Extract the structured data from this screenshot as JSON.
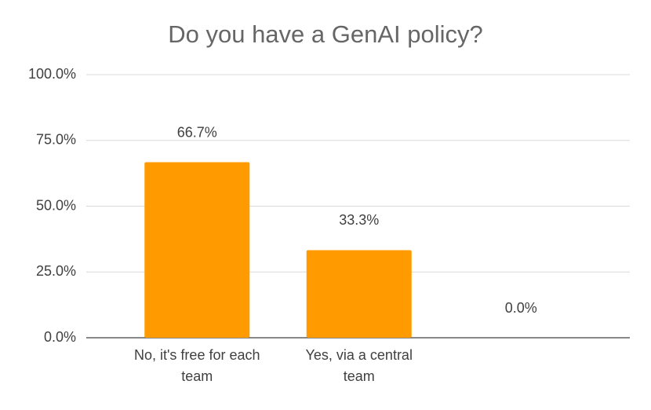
{
  "chart_data": {
    "type": "bar",
    "title": "Do you have a GenAI policy?",
    "categories": [
      "No, it's free for each team",
      "Yes, via a central team",
      null
    ],
    "values": [
      66.7,
      33.3,
      0.0
    ],
    "value_labels": [
      "66.7%",
      "33.3%",
      "0.0%"
    ],
    "color": "#ff9a00",
    "ylim": [
      0,
      100
    ],
    "yticks": [
      {
        "value": 0,
        "label": "0.0%"
      },
      {
        "value": 25,
        "label": "25.0%"
      },
      {
        "value": 50,
        "label": "50.0%"
      },
      {
        "value": 75,
        "label": "75.0%"
      },
      {
        "value": 100,
        "label": "100.0%"
      }
    ],
    "grid": true
  }
}
